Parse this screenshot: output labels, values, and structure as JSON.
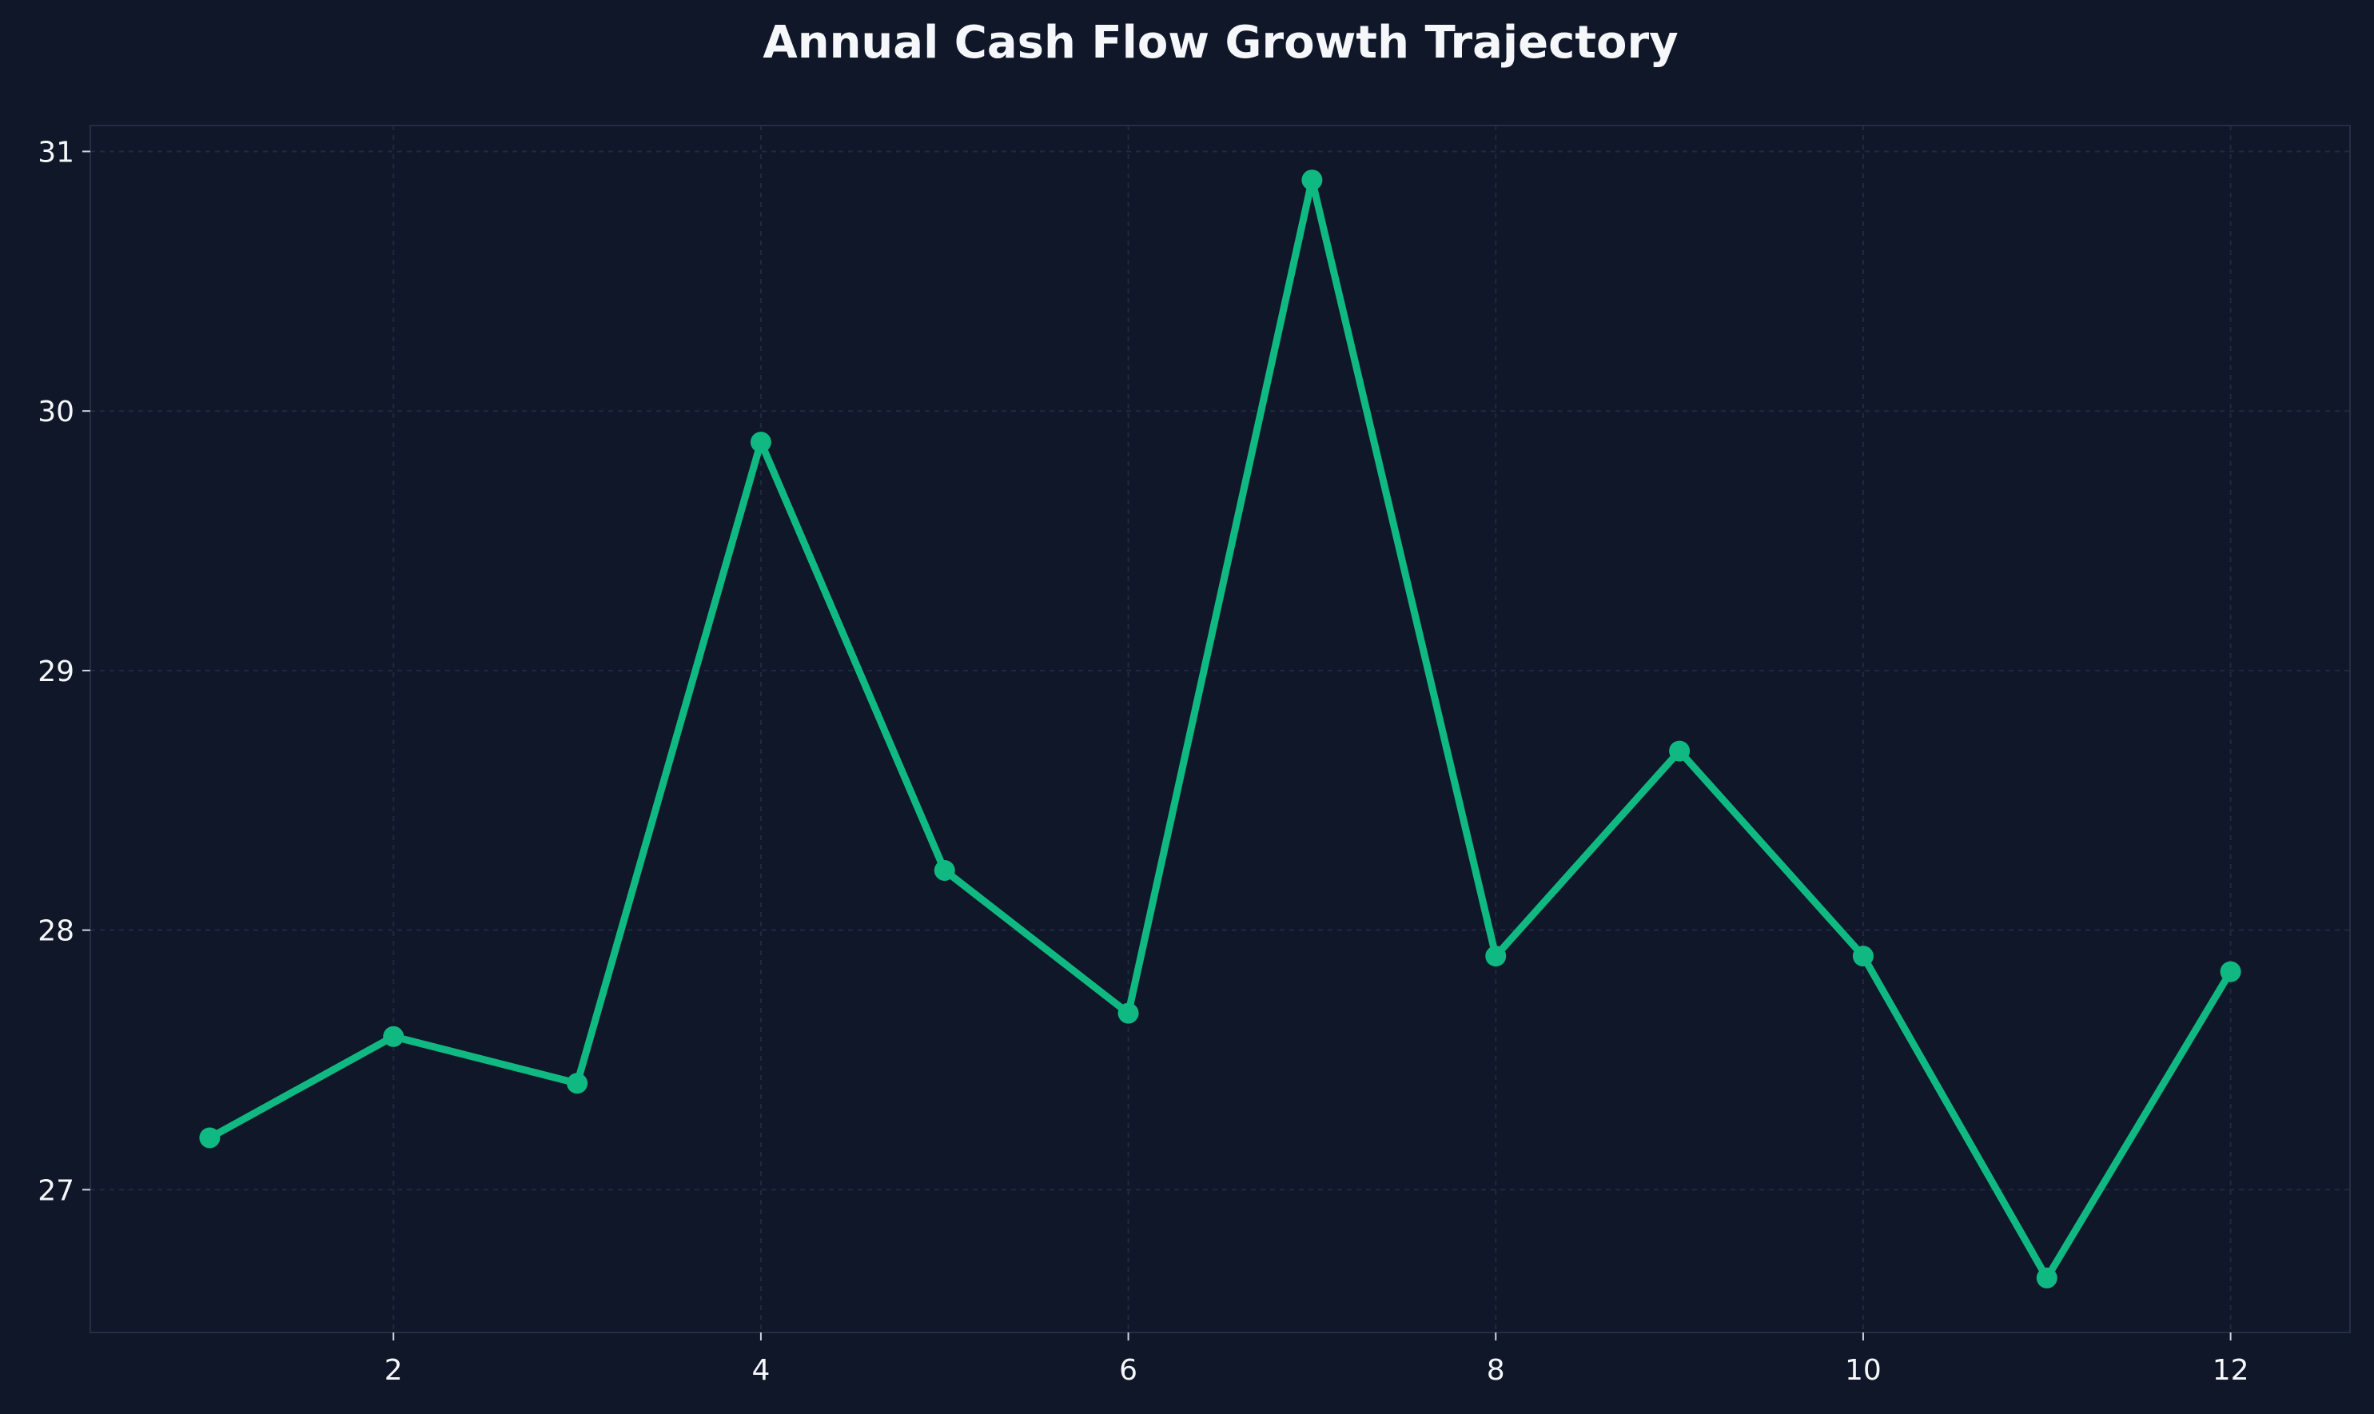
{
  "chart_data": {
    "type": "line",
    "title": "Annual Cash Flow Growth Trajectory",
    "xlabel": "",
    "ylabel": "",
    "x": [
      1,
      2,
      3,
      4,
      5,
      6,
      7,
      8,
      9,
      10,
      11,
      12
    ],
    "series": [
      {
        "values": [
          27.2,
          27.59,
          27.41,
          29.88,
          28.23,
          27.68,
          30.89,
          27.9,
          28.69,
          27.9,
          26.66,
          27.84
        ],
        "color": "#10b981"
      }
    ],
    "xlim": [
      0.35,
      12.65
    ],
    "ylim": [
      26.45,
      31.1
    ],
    "xticks": [
      2,
      4,
      6,
      8,
      10,
      12
    ],
    "yticks": [
      27,
      28,
      29,
      30,
      31
    ],
    "grid": true,
    "legend": "none",
    "colors": {
      "background": "#0f1729",
      "line": "#10b981",
      "text": "#f5f7fa",
      "grid": "#243042"
    }
  }
}
